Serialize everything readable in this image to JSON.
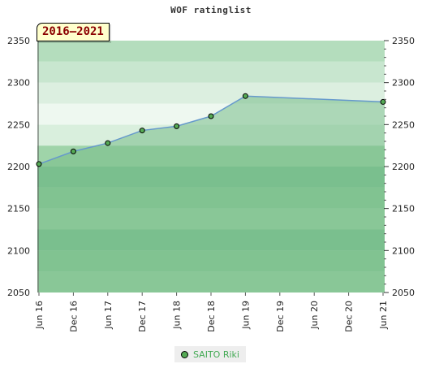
{
  "chart_data": {
    "type": "area",
    "title": "WOF ratinglist",
    "period_label": "2016–2021",
    "xlabel": "",
    "ylabel": "",
    "x_ticks": [
      "Jun 16",
      "Dec 16",
      "Jun 17",
      "Dec 17",
      "Jun 18",
      "Dec 18",
      "Jun 19",
      "Dec 19",
      "Jun 20",
      "Dec 20",
      "Jun 21"
    ],
    "y_ticks": [
      2050,
      2100,
      2150,
      2200,
      2250,
      2300,
      2350
    ],
    "ylim": [
      2050,
      2350
    ],
    "series": [
      {
        "name": "SAITO Riki",
        "x": [
          "Jun 16",
          "Dec 16",
          "Jun 17",
          "Dec 17",
          "Jun 18",
          "Dec 18",
          "Jun 19",
          "Jun 21"
        ],
        "values": [
          2203,
          2218,
          2228,
          2243,
          2248,
          2260,
          2284,
          2277
        ]
      }
    ],
    "grid": true,
    "legend_position": "bottom-center",
    "colors": {
      "line": "#6699cc",
      "area": "#77bb88",
      "marker": "#55aa55",
      "legend_text": "#44aa55",
      "badge_bg": "#ffffcc",
      "badge_text": "#8b0000"
    }
  }
}
